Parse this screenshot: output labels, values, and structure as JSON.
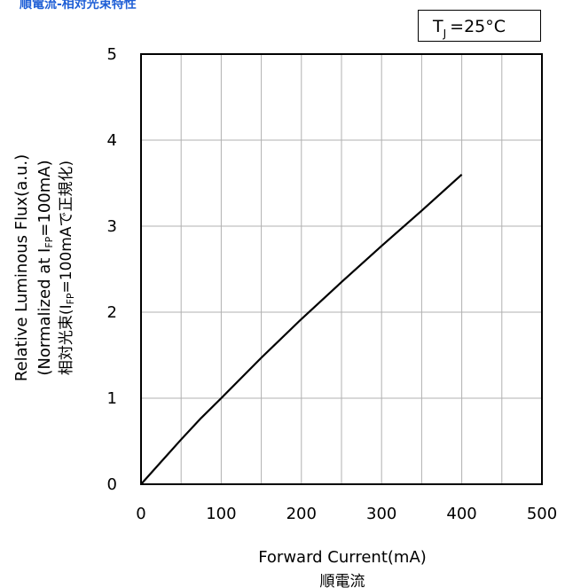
{
  "header": {
    "title": "順電流-相対光束特性",
    "condition": {
      "prefix": "T",
      "subscript": "J",
      "value": "=25°C"
    }
  },
  "colors": {
    "title": "#1f5fd6",
    "grid": "#b0b0b0",
    "line": "#000000"
  },
  "chart_data": {
    "type": "line",
    "title": "順電流-相対光束特性",
    "xlabel": "Forward Current(mA)",
    "xlabel_jp": "順電流",
    "ylabel_lines": [
      "Relative Luminous Flux(a.u.)",
      "(Normalized at I",
      "FP",
      "=100mA)",
      "相対光束(I",
      "FP",
      "=100mAで正規化)"
    ],
    "xlim": [
      0,
      500
    ],
    "ylim": [
      0,
      5
    ],
    "xticks": [
      0,
      100,
      200,
      300,
      400,
      500
    ],
    "yticks": [
      0,
      1,
      2,
      3,
      4,
      5
    ],
    "x_minor_step": 50,
    "grid": true,
    "series": [
      {
        "x": [
          0,
          25,
          50,
          75,
          100,
          150,
          200,
          250,
          300,
          350,
          400
        ],
        "values": [
          0,
          0.26,
          0.52,
          0.77,
          1.0,
          1.47,
          1.92,
          2.35,
          2.77,
          3.18,
          3.6
        ]
      }
    ]
  }
}
